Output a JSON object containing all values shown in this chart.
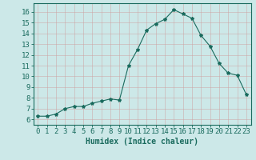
{
  "x": [
    0,
    1,
    2,
    3,
    4,
    5,
    6,
    7,
    8,
    9,
    10,
    11,
    12,
    13,
    14,
    15,
    16,
    17,
    18,
    19,
    20,
    21,
    22,
    23
  ],
  "y": [
    6.3,
    6.3,
    6.5,
    7.0,
    7.2,
    7.2,
    7.5,
    7.7,
    7.9,
    7.8,
    11.0,
    12.5,
    14.3,
    14.9,
    15.3,
    16.2,
    15.8,
    15.4,
    13.8,
    12.8,
    11.2,
    10.3,
    10.1,
    8.3
  ],
  "line_color": "#1a6b5e",
  "marker": "*",
  "marker_size": 3,
  "bg_color": "#cce8e8",
  "grid_color": "#b0cccc",
  "xlabel": "Humidex (Indice chaleur)",
  "xlim": [
    -0.5,
    23.5
  ],
  "ylim": [
    5.5,
    16.8
  ],
  "yticks": [
    6,
    7,
    8,
    9,
    10,
    11,
    12,
    13,
    14,
    15,
    16
  ],
  "xticks": [
    0,
    1,
    2,
    3,
    4,
    5,
    6,
    7,
    8,
    9,
    10,
    11,
    12,
    13,
    14,
    15,
    16,
    17,
    18,
    19,
    20,
    21,
    22,
    23
  ],
  "tick_color": "#1a6b5e",
  "label_color": "#1a6b5e",
  "xlabel_fontsize": 7,
  "tick_fontsize": 6.5
}
